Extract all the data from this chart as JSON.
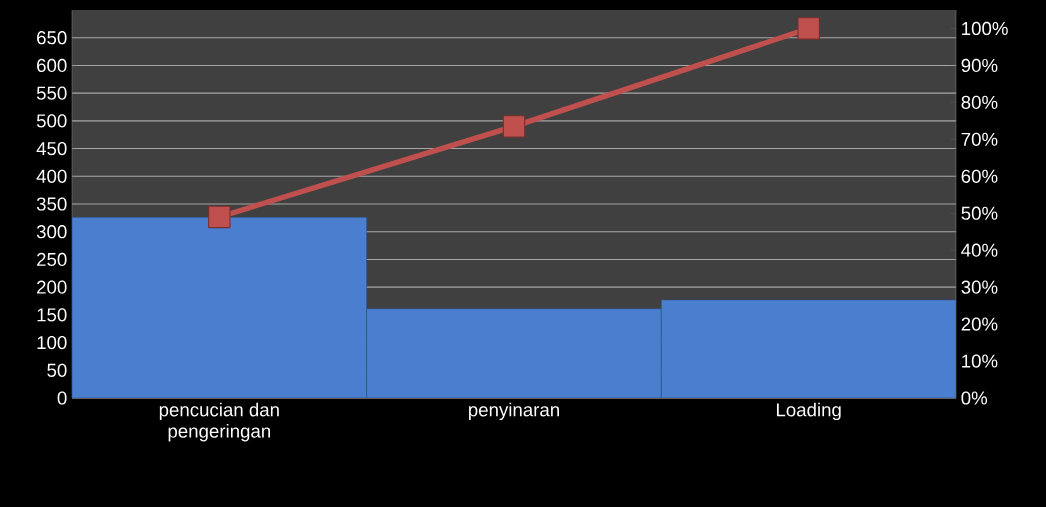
{
  "chart_data": {
    "type": "bar",
    "categories": [
      "pencucian dan pengeringan",
      "penyinaran",
      "Loading"
    ],
    "series": [
      {
        "color": "#4a7fd0",
        "values": [
          326,
          161,
          177
        ]
      },
      {
        "type": "line",
        "axis": "y2",
        "color": "#c0504d",
        "values": [
          49,
          73.5,
          100
        ],
        "marker": "square"
      }
    ],
    "ylim": [
      0,
      700
    ],
    "yticks": [
      0,
      50,
      100,
      150,
      200,
      250,
      300,
      350,
      400,
      450,
      500,
      550,
      600,
      650
    ],
    "y2lim": [
      0,
      105
    ],
    "y2ticks": [
      {
        "value": 0,
        "label": "0%"
      },
      {
        "value": 10,
        "label": "10%"
      },
      {
        "value": 20,
        "label": "20%"
      },
      {
        "value": 30,
        "label": "30%"
      },
      {
        "value": 40,
        "label": "40%"
      },
      {
        "value": 50,
        "label": "50%"
      },
      {
        "value": 60,
        "label": "60%"
      },
      {
        "value": 70,
        "label": "70%"
      },
      {
        "value": 80,
        "label": "80%"
      },
      {
        "value": 90,
        "label": "90%"
      },
      {
        "value": 100,
        "label": "100%"
      }
    ],
    "grid": "y"
  }
}
